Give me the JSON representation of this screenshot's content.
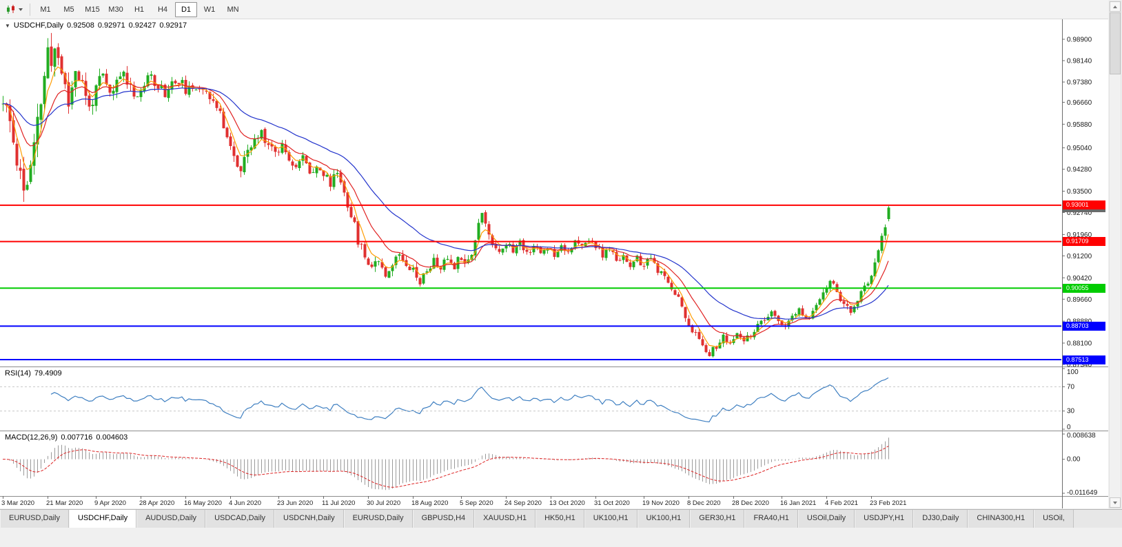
{
  "toolbar": {
    "timeframes": [
      "M1",
      "M5",
      "M15",
      "M30",
      "H1",
      "H4",
      "D1",
      "W1",
      "MN"
    ],
    "active_timeframe": "D1"
  },
  "chart": {
    "legend": {
      "symbol_period": "USDCHF,Daily",
      "open": "0.92508",
      "high": "0.92971",
      "low": "0.92427",
      "close": "0.92917"
    },
    "price_axis_labels": [
      "0.98900",
      "0.98140",
      "0.97380",
      "0.96660",
      "0.95880",
      "0.95040",
      "0.94280",
      "0.93500",
      "0.92740",
      "0.91960",
      "0.91200",
      "0.90420",
      "0.89660",
      "0.88880",
      "0.88100",
      "0.87340"
    ],
    "hlines": [
      {
        "label": "0.93001",
        "price": 0.93001,
        "color": "#ff0000"
      },
      {
        "label": "0.91709",
        "price": 0.91709,
        "color": "#ff0000"
      },
      {
        "label": "0.90055",
        "price": 0.90055,
        "color": "#00cc00"
      },
      {
        "label": "0.88703",
        "price": 0.88703,
        "color": "#0000ff"
      },
      {
        "label": "0.87513",
        "price": 0.87513,
        "color": "#0000ff"
      }
    ],
    "current_price": {
      "label": "0.92917",
      "price": 0.92917,
      "color": "#6a6a6a"
    },
    "time_axis": [
      {
        "label": "3 Mar 2020",
        "index": 0
      },
      {
        "label": "21 Mar 2020",
        "index": 13
      },
      {
        "label": "9 Apr 2020",
        "index": 27
      },
      {
        "label": "28 Apr 2020",
        "index": 40
      },
      {
        "label": "16 May 2020",
        "index": 53
      },
      {
        "label": "4 Jun 2020",
        "index": 66
      },
      {
        "label": "23 Jun 2020",
        "index": 80
      },
      {
        "label": "11 Jul 2020",
        "index": 93
      },
      {
        "label": "30 Jul 2020",
        "index": 106
      },
      {
        "label": "18 Aug 2020",
        "index": 119
      },
      {
        "label": "5 Sep 2020",
        "index": 133
      },
      {
        "label": "24 Sep 2020",
        "index": 146
      },
      {
        "label": "13 Oct 2020",
        "index": 159
      },
      {
        "label": "31 Oct 2020",
        "index": 172
      },
      {
        "label": "19 Nov 2020",
        "index": 186
      },
      {
        "label": "8 Dec 2020",
        "index": 199
      },
      {
        "label": "28 Dec 2020",
        "index": 212
      },
      {
        "label": "16 Jan 2021",
        "index": 226
      },
      {
        "label": "4 Feb 2021",
        "index": 239
      },
      {
        "label": "23 Feb 2021",
        "index": 252
      }
    ]
  },
  "rsi": {
    "title": "RSI(14)",
    "value": "79.4909",
    "levels": [
      "100",
      "70",
      "30",
      "0"
    ],
    "level_values": [
      100,
      70,
      30,
      0
    ],
    "color": "#3e7fc1"
  },
  "macd": {
    "title": "MACD(12,26,9)",
    "value_main": "0.007716",
    "value_signal": "0.004603",
    "axis_max": "0.008638",
    "axis_zero": "0.00",
    "axis_min": "-0.011649",
    "histogram_color": "#9a9a9a",
    "signal_color": "#dd2222"
  },
  "chart_data": {
    "type": "candlestick",
    "symbol": "USDCHF",
    "period": "Daily",
    "count": 258,
    "seed": 11,
    "up_color": "#21ad21",
    "down_color": "#e03030",
    "price_scale": {
      "max": 0.9961,
      "min": 0.87267
    },
    "last_candle": {
      "open": 0.92508,
      "high": 0.92971,
      "low": 0.92427,
      "close": 0.92917
    },
    "moving_averages": [
      {
        "period": 5,
        "color": "#ff9c00"
      },
      {
        "period": 13,
        "color": "#e02222"
      },
      {
        "period": 34,
        "color": "#2233cc"
      }
    ],
    "close_path": [
      [
        0,
        0.966
      ],
      [
        2,
        0.959
      ],
      [
        4,
        0.947
      ],
      [
        6,
        0.936
      ],
      [
        8,
        0.942
      ],
      [
        10,
        0.958
      ],
      [
        12,
        0.976
      ],
      [
        13,
        0.984
      ],
      [
        14,
        0.98
      ],
      [
        15,
        0.986
      ],
      [
        16,
        0.983
      ],
      [
        17,
        0.978
      ],
      [
        19,
        0.966
      ],
      [
        21,
        0.979
      ],
      [
        23,
        0.9725
      ],
      [
        25,
        0.9645
      ],
      [
        27,
        0.9715
      ],
      [
        29,
        0.9755
      ],
      [
        31,
        0.969
      ],
      [
        33,
        0.9735
      ],
      [
        35,
        0.9775
      ],
      [
        37,
        0.972
      ],
      [
        39,
        0.969
      ],
      [
        41,
        0.9728
      ],
      [
        43,
        0.9758
      ],
      [
        45,
        0.9728
      ],
      [
        47,
        0.97
      ],
      [
        49,
        0.9732
      ],
      [
        51,
        0.9744
      ],
      [
        53,
        0.9712
      ],
      [
        55,
        0.9698
      ],
      [
        57,
        0.9728
      ],
      [
        59,
        0.9712
      ],
      [
        61,
        0.9668
      ],
      [
        63,
        0.9618
      ],
      [
        65,
        0.9558
      ],
      [
        67,
        0.9468
      ],
      [
        69,
        0.942
      ],
      [
        71,
        0.9488
      ],
      [
        73,
        0.9528
      ],
      [
        75,
        0.9558
      ],
      [
        77,
        0.9522
      ],
      [
        79,
        0.9488
      ],
      [
        81,
        0.9518
      ],
      [
        83,
        0.9472
      ],
      [
        85,
        0.9438
      ],
      [
        87,
        0.9468
      ],
      [
        89,
        0.9422
      ],
      [
        91,
        0.9442
      ],
      [
        93,
        0.9408
      ],
      [
        95,
        0.9378
      ],
      [
        97,
        0.9422
      ],
      [
        99,
        0.9348
      ],
      [
        101,
        0.9268
      ],
      [
        103,
        0.9178
      ],
      [
        105,
        0.9118
      ],
      [
        107,
        0.9088
      ],
      [
        109,
        0.9112
      ],
      [
        111,
        0.9058
      ],
      [
        113,
        0.9092
      ],
      [
        115,
        0.9128
      ],
      [
        117,
        0.9098
      ],
      [
        119,
        0.9072
      ],
      [
        121,
        0.903
      ],
      [
        123,
        0.9068
      ],
      [
        125,
        0.9102
      ],
      [
        127,
        0.9078
      ],
      [
        129,
        0.9112
      ],
      [
        131,
        0.9088
      ],
      [
        133,
        0.9122
      ],
      [
        135,
        0.9102
      ],
      [
        137,
        0.9178
      ],
      [
        138,
        0.9238
      ],
      [
        139,
        0.9272
      ],
      [
        140,
        0.9228
      ],
      [
        142,
        0.9168
      ],
      [
        144,
        0.9138
      ],
      [
        146,
        0.9168
      ],
      [
        148,
        0.9138
      ],
      [
        150,
        0.9168
      ],
      [
        152,
        0.9132
      ],
      [
        154,
        0.9158
      ],
      [
        156,
        0.9128
      ],
      [
        158,
        0.9152
      ],
      [
        160,
        0.9128
      ],
      [
        162,
        0.9158
      ],
      [
        164,
        0.9138
      ],
      [
        166,
        0.9168
      ],
      [
        168,
        0.9148
      ],
      [
        170,
        0.9178
      ],
      [
        172,
        0.9158
      ],
      [
        174,
        0.9118
      ],
      [
        176,
        0.9148
      ],
      [
        178,
        0.9098
      ],
      [
        180,
        0.9128
      ],
      [
        182,
        0.9078
      ],
      [
        184,
        0.9108
      ],
      [
        186,
        0.9082
      ],
      [
        188,
        0.9112
      ],
      [
        190,
        0.9068
      ],
      [
        192,
        0.9038
      ],
      [
        194,
        0.9008
      ],
      [
        196,
        0.8972
      ],
      [
        198,
        0.89
      ],
      [
        200,
        0.8858
      ],
      [
        202,
        0.8818
      ],
      [
        204,
        0.879
      ],
      [
        205,
        0.8775
      ],
      [
        207,
        0.8798
      ],
      [
        209,
        0.8828
      ],
      [
        211,
        0.8808
      ],
      [
        213,
        0.8838
      ],
      [
        215,
        0.8812
      ],
      [
        217,
        0.8842
      ],
      [
        219,
        0.8868
      ],
      [
        221,
        0.8892
      ],
      [
        223,
        0.8912
      ],
      [
        225,
        0.8892
      ],
      [
        227,
        0.8868
      ],
      [
        229,
        0.8898
      ],
      [
        231,
        0.8928
      ],
      [
        233,
        0.8892
      ],
      [
        235,
        0.8918
      ],
      [
        237,
        0.8972
      ],
      [
        239,
        0.901
      ],
      [
        240,
        0.9036
      ],
      [
        242,
        0.8992
      ],
      [
        244,
        0.8946
      ],
      [
        246,
        0.8918
      ],
      [
        248,
        0.896
      ],
      [
        250,
        0.9006
      ],
      [
        252,
        0.906
      ],
      [
        253,
        0.91
      ],
      [
        254,
        0.9146
      ],
      [
        255,
        0.918
      ],
      [
        256,
        0.9226
      ],
      [
        257,
        0.9292
      ]
    ],
    "volatility_path": [
      [
        0,
        0.009
      ],
      [
        6,
        0.0105
      ],
      [
        10,
        0.011
      ],
      [
        16,
        0.0092
      ],
      [
        22,
        0.0072
      ],
      [
        30,
        0.0052
      ],
      [
        45,
        0.0042
      ],
      [
        60,
        0.004
      ],
      [
        70,
        0.0048
      ],
      [
        85,
        0.0035
      ],
      [
        98,
        0.0042
      ],
      [
        110,
        0.004
      ],
      [
        125,
        0.003
      ],
      [
        137,
        0.0042
      ],
      [
        145,
        0.0032
      ],
      [
        160,
        0.0028
      ],
      [
        185,
        0.0028
      ],
      [
        205,
        0.0028
      ],
      [
        225,
        0.0024
      ],
      [
        240,
        0.0026
      ],
      [
        250,
        0.003
      ],
      [
        257,
        0.0034
      ]
    ]
  },
  "tabbar": {
    "active_index": 1,
    "tabs": [
      "EURUSD,Daily",
      "USDCHF,Daily",
      "AUDUSD,Daily",
      "USDCAD,Daily",
      "USDCNH,Daily",
      "EURUSD,Daily",
      "GBPUSD,H4",
      "XAUUSD,H1",
      "HK50,H1",
      "UK100,H1",
      "UK100,H1",
      "GER30,H1",
      "FRA40,H1",
      "USOil,Daily",
      "USDJPY,H1",
      "DJ30,Daily",
      "CHINA300,H1",
      "USOil,"
    ]
  }
}
